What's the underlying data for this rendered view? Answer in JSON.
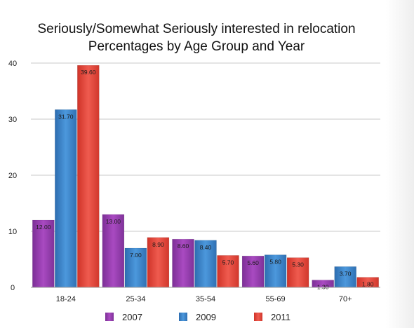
{
  "chart_data": {
    "type": "bar",
    "title": "Seriously/Somewhat Seriously interested in relocation",
    "subtitle": "Percentages by Age Group and Year",
    "categories": [
      "18-24",
      "25-34",
      "35-54",
      "55-69",
      "70+"
    ],
    "series": [
      {
        "name": "2007",
        "values": [
          12.0,
          13.0,
          8.6,
          5.6,
          1.3
        ]
      },
      {
        "name": "2009",
        "values": [
          31.7,
          7.0,
          8.4,
          5.8,
          3.7
        ]
      },
      {
        "name": "2011",
        "values": [
          39.6,
          8.9,
          5.7,
          5.3,
          1.8
        ]
      }
    ],
    "data_labels": [
      [
        "12.00",
        "13.00",
        "8.60",
        "5.60",
        "1.30"
      ],
      [
        "31.70",
        "7.00",
        "8.40",
        "5.80",
        "3.70"
      ],
      [
        "39.60",
        "8.90",
        "5.70",
        "5.30",
        "1.80"
      ]
    ],
    "ylim": [
      0,
      40
    ],
    "yticks": [
      0,
      10,
      20,
      30,
      40
    ],
    "xlabel": "",
    "ylabel": "",
    "grid": true,
    "legend_position": "bottom",
    "colors": {
      "2007": "#9b3fb5",
      "2009": "#3f86cc",
      "2011": "#e6453c",
      "grid": "#c8c8c8",
      "text": "#222222"
    }
  }
}
